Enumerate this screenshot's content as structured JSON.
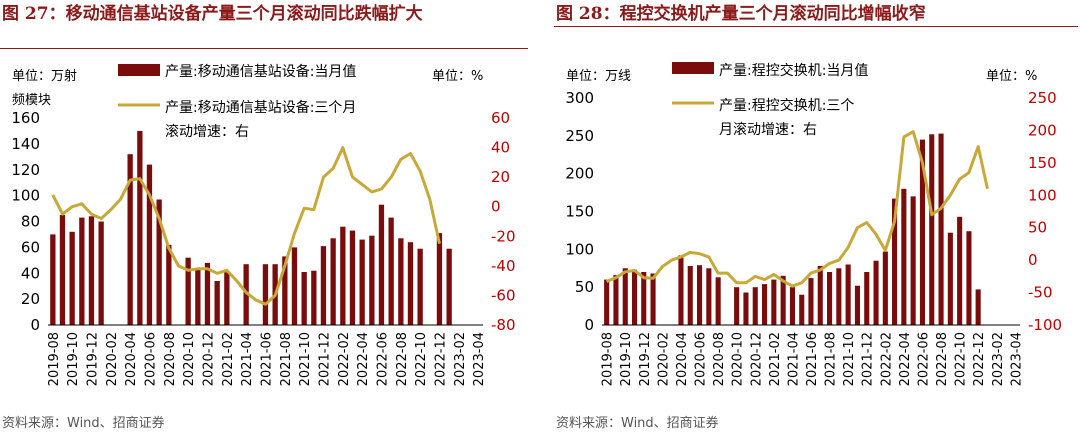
{
  "colors": {
    "bar": "#7B0C0C",
    "line": "#C8A838",
    "title": "#8B1A1A",
    "right_axis_text": "#C00000",
    "axis": "#000000"
  },
  "chart_data": [
    {
      "type": "bar",
      "title": "图 27：移动通信基站设备产量三个月滚动同比跌幅扩大",
      "left_unit": "单位：万射频模块",
      "right_unit": "单位：%",
      "source": "资料来源：Wind、招商证券",
      "legend": {
        "bar": "产量:移动通信基站设备:当月值",
        "line": "产量:移动通信基站设备:三个月滚动增速：右"
      },
      "ylim_left": [
        0,
        160
      ],
      "yticks_left": [
        "0",
        "20",
        "40",
        "60",
        "80",
        "100",
        "120",
        "140",
        "160"
      ],
      "ylim_right": [
        -80,
        60
      ],
      "yticks_right": [
        "-80",
        "-60",
        "-40",
        "-20",
        "0",
        "20",
        "40",
        "60"
      ],
      "x_tick_labels": [
        "2019-08",
        "2019-10",
        "2019-12",
        "2020-02",
        "2020-04",
        "2020-06",
        "2020-08",
        "2020-10",
        "2020-12",
        "2021-02",
        "2021-04",
        "2021-06",
        "2021-08",
        "2021-10",
        "2021-12",
        "2022-02",
        "2022-04",
        "2022-06",
        "2022-08",
        "2022-10",
        "2022-12",
        "2023-02",
        "2023-04"
      ],
      "categories": [
        "2019-08",
        "2019-09",
        "2019-10",
        "2019-11",
        "2019-12",
        "2020-01",
        "2020-02",
        "2020-03",
        "2020-04",
        "2020-05",
        "2020-06",
        "2020-07",
        "2020-08",
        "2020-09",
        "2020-10",
        "2020-11",
        "2020-12",
        "2021-01",
        "2021-02",
        "2021-03",
        "2021-04",
        "2021-05",
        "2021-06",
        "2021-07",
        "2021-08",
        "2021-09",
        "2021-10",
        "2021-11",
        "2021-12",
        "2022-01",
        "2022-02",
        "2022-03",
        "2022-04",
        "2022-05",
        "2022-06",
        "2022-07",
        "2022-08",
        "2022-09",
        "2022-10",
        "2022-11",
        "2022-12",
        "2023-01",
        "2023-02",
        "2023-03",
        "2023-04"
      ],
      "bar_values": [
        70,
        85,
        72,
        83,
        84,
        80,
        null,
        null,
        132,
        150,
        124,
        97,
        62,
        null,
        52,
        43,
        48,
        34,
        41,
        null,
        47,
        null,
        47,
        47,
        53,
        60,
        41,
        42,
        61,
        67,
        76,
        73,
        66,
        69,
        93,
        83,
        67,
        64,
        59,
        null,
        71,
        59,
        null,
        null,
        null
      ],
      "line_values": [
        8,
        -5,
        0,
        2,
        -5,
        -8,
        -2,
        5,
        18,
        19,
        8,
        -8,
        -28,
        -40,
        -43,
        -42,
        -42,
        -45,
        -43,
        -50,
        -58,
        -63,
        -66,
        -60,
        -40,
        -18,
        -1,
        -2,
        20,
        26,
        40,
        20,
        15,
        10,
        12,
        20,
        32,
        36,
        24,
        5,
        -25,
        null,
        null,
        null,
        null
      ]
    },
    {
      "type": "bar",
      "title": "图 28：程控交换机产量三个月滚动同比增幅收窄",
      "left_unit": "单位：万线",
      "right_unit": "单位：%",
      "source": "资料来源：Wind、招商证券",
      "legend": {
        "bar": "产量:程控交换机:当月值",
        "line": "产量:程控交换机:三个月滚动增速：右"
      },
      "ylim_left": [
        0,
        300
      ],
      "yticks_left": [
        "0",
        "50",
        "100",
        "150",
        "200",
        "250",
        "300"
      ],
      "ylim_right": [
        -100,
        250
      ],
      "yticks_right": [
        "-100",
        "-50",
        "0",
        "50",
        "100",
        "150",
        "200",
        "250"
      ],
      "x_tick_labels": [
        "2019-08",
        "2019-10",
        "2019-12",
        "2020-02",
        "2020-04",
        "2020-06",
        "2020-08",
        "2020-10",
        "2020-12",
        "2021-02",
        "2021-04",
        "2021-06",
        "2021-08",
        "2021-10",
        "2021-12",
        "2022-02",
        "2022-04",
        "2022-06",
        "2022-08",
        "2022-10",
        "2022-12",
        "2023-02",
        "2023-04"
      ],
      "categories": [
        "2019-08",
        "2019-09",
        "2019-10",
        "2019-11",
        "2019-12",
        "2020-01",
        "2020-02",
        "2020-03",
        "2020-04",
        "2020-05",
        "2020-06",
        "2020-07",
        "2020-08",
        "2020-09",
        "2020-10",
        "2020-11",
        "2020-12",
        "2021-01",
        "2021-02",
        "2021-03",
        "2021-04",
        "2021-05",
        "2021-06",
        "2021-07",
        "2021-08",
        "2021-09",
        "2021-10",
        "2021-11",
        "2021-12",
        "2022-01",
        "2022-02",
        "2022-03",
        "2022-04",
        "2022-05",
        "2022-06",
        "2022-07",
        "2022-08",
        "2022-09",
        "2022-10",
        "2022-11",
        "2022-12",
        "2023-01",
        "2023-02",
        "2023-03",
        "2023-04"
      ],
      "bar_values": [
        60,
        66,
        75,
        73,
        70,
        68,
        null,
        null,
        92,
        78,
        79,
        75,
        63,
        null,
        50,
        43,
        50,
        54,
        60,
        65,
        50,
        40,
        62,
        78,
        70,
        75,
        80,
        52,
        70,
        85,
        97,
        167,
        180,
        170,
        245,
        252,
        253,
        122,
        143,
        124,
        47,
        null,
        null,
        null,
        null
      ],
      "line_values": [
        -33,
        -27,
        -18,
        -16,
        -27,
        -28,
        -10,
        0,
        5,
        12,
        10,
        5,
        -20,
        -20,
        -35,
        -35,
        -25,
        -30,
        -22,
        -32,
        -40,
        -35,
        -20,
        -15,
        -5,
        0,
        20,
        50,
        58,
        40,
        15,
        60,
        190,
        198,
        150,
        70,
        80,
        100,
        125,
        135,
        175,
        110,
        null,
        null,
        null
      ]
    }
  ]
}
